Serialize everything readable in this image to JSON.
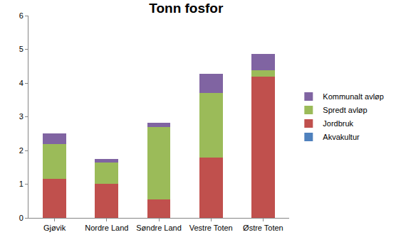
{
  "chart_data": {
    "type": "bar",
    "title": "Tonn fosfor",
    "categories": [
      "Gjøvik",
      "Nordre Land",
      "Søndre Land",
      "Vestre Toten",
      "Østre Toten"
    ],
    "series": [
      {
        "name": "Akvakultur",
        "color": "#4f81bd",
        "values": [
          0,
          0,
          0,
          0,
          0
        ]
      },
      {
        "name": "Jordbruk",
        "color": "#c0504d",
        "values": [
          1.15,
          1.02,
          0.55,
          1.78,
          4.18
        ]
      },
      {
        "name": "Spredt avløp",
        "color": "#9bbb59",
        "values": [
          1.05,
          0.63,
          2.15,
          1.92,
          0.2
        ]
      },
      {
        "name": "Kommunalt avløp",
        "color": "#8064a2",
        "values": [
          0.3,
          0.1,
          0.12,
          0.57,
          0.48
        ]
      }
    ],
    "stacked": true,
    "ylim": [
      0,
      6
    ],
    "yticks": [
      0,
      1,
      2,
      3,
      4,
      5,
      6
    ],
    "grid": false,
    "legend": "right"
  }
}
